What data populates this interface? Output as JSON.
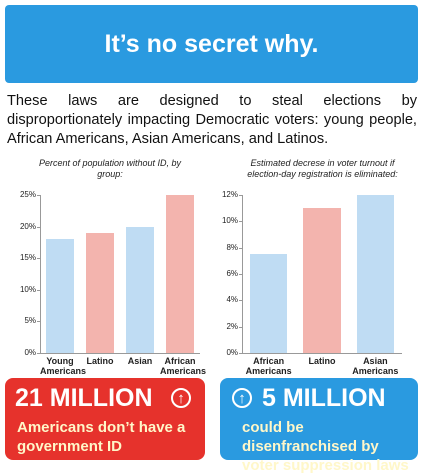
{
  "header": {
    "title": "It’s no secret why."
  },
  "intro": "These laws are designed to steal elections by disproportionately impacting Democratic voters: young people, African Americans, Asian Americans, and Latinos.",
  "chart_data": [
    {
      "type": "bar",
      "title": "Percent of population without ID, by group:",
      "categories": [
        "Young Americans",
        "Latino",
        "Asian",
        "African Americans"
      ],
      "values": [
        18,
        19,
        20,
        25
      ],
      "colors": [
        "#bfdcf3",
        "#f3b4ae",
        "#bfdcf3",
        "#f3b4ae"
      ],
      "ylim": [
        0,
        25
      ],
      "yticks": [
        {
          "value": 0,
          "label": "0%"
        },
        {
          "value": 5,
          "label": "5%"
        },
        {
          "value": 10,
          "label": "10%"
        },
        {
          "value": 15,
          "label": "15%"
        },
        {
          "value": 20,
          "label": "20%"
        },
        {
          "value": 25,
          "label": "25%"
        }
      ]
    },
    {
      "type": "bar",
      "title": "Estimated decrese in voter turnout if election-day registration is eliminated:",
      "categories": [
        "African Americans",
        "Latino",
        "Asian Americans"
      ],
      "values": [
        7.5,
        11,
        12
      ],
      "colors": [
        "#bfdcf3",
        "#f3b4ae",
        "#bfdcf3"
      ],
      "ylim": [
        0,
        12
      ],
      "yticks": [
        {
          "value": 0,
          "label": "0%"
        },
        {
          "value": 2,
          "label": "2%"
        },
        {
          "value": 4,
          "label": "4%"
        },
        {
          "value": 6,
          "label": "6%"
        },
        {
          "value": 8,
          "label": "8%"
        },
        {
          "value": 10,
          "label": "10%"
        },
        {
          "value": 12,
          "label": "12%"
        }
      ]
    }
  ],
  "callouts": [
    {
      "headline": "21 MILLION",
      "text": "Americans don’t have a government ID"
    },
    {
      "headline": "5 MILLION",
      "text": "could be disenfranchised by voter suppression laws"
    }
  ]
}
